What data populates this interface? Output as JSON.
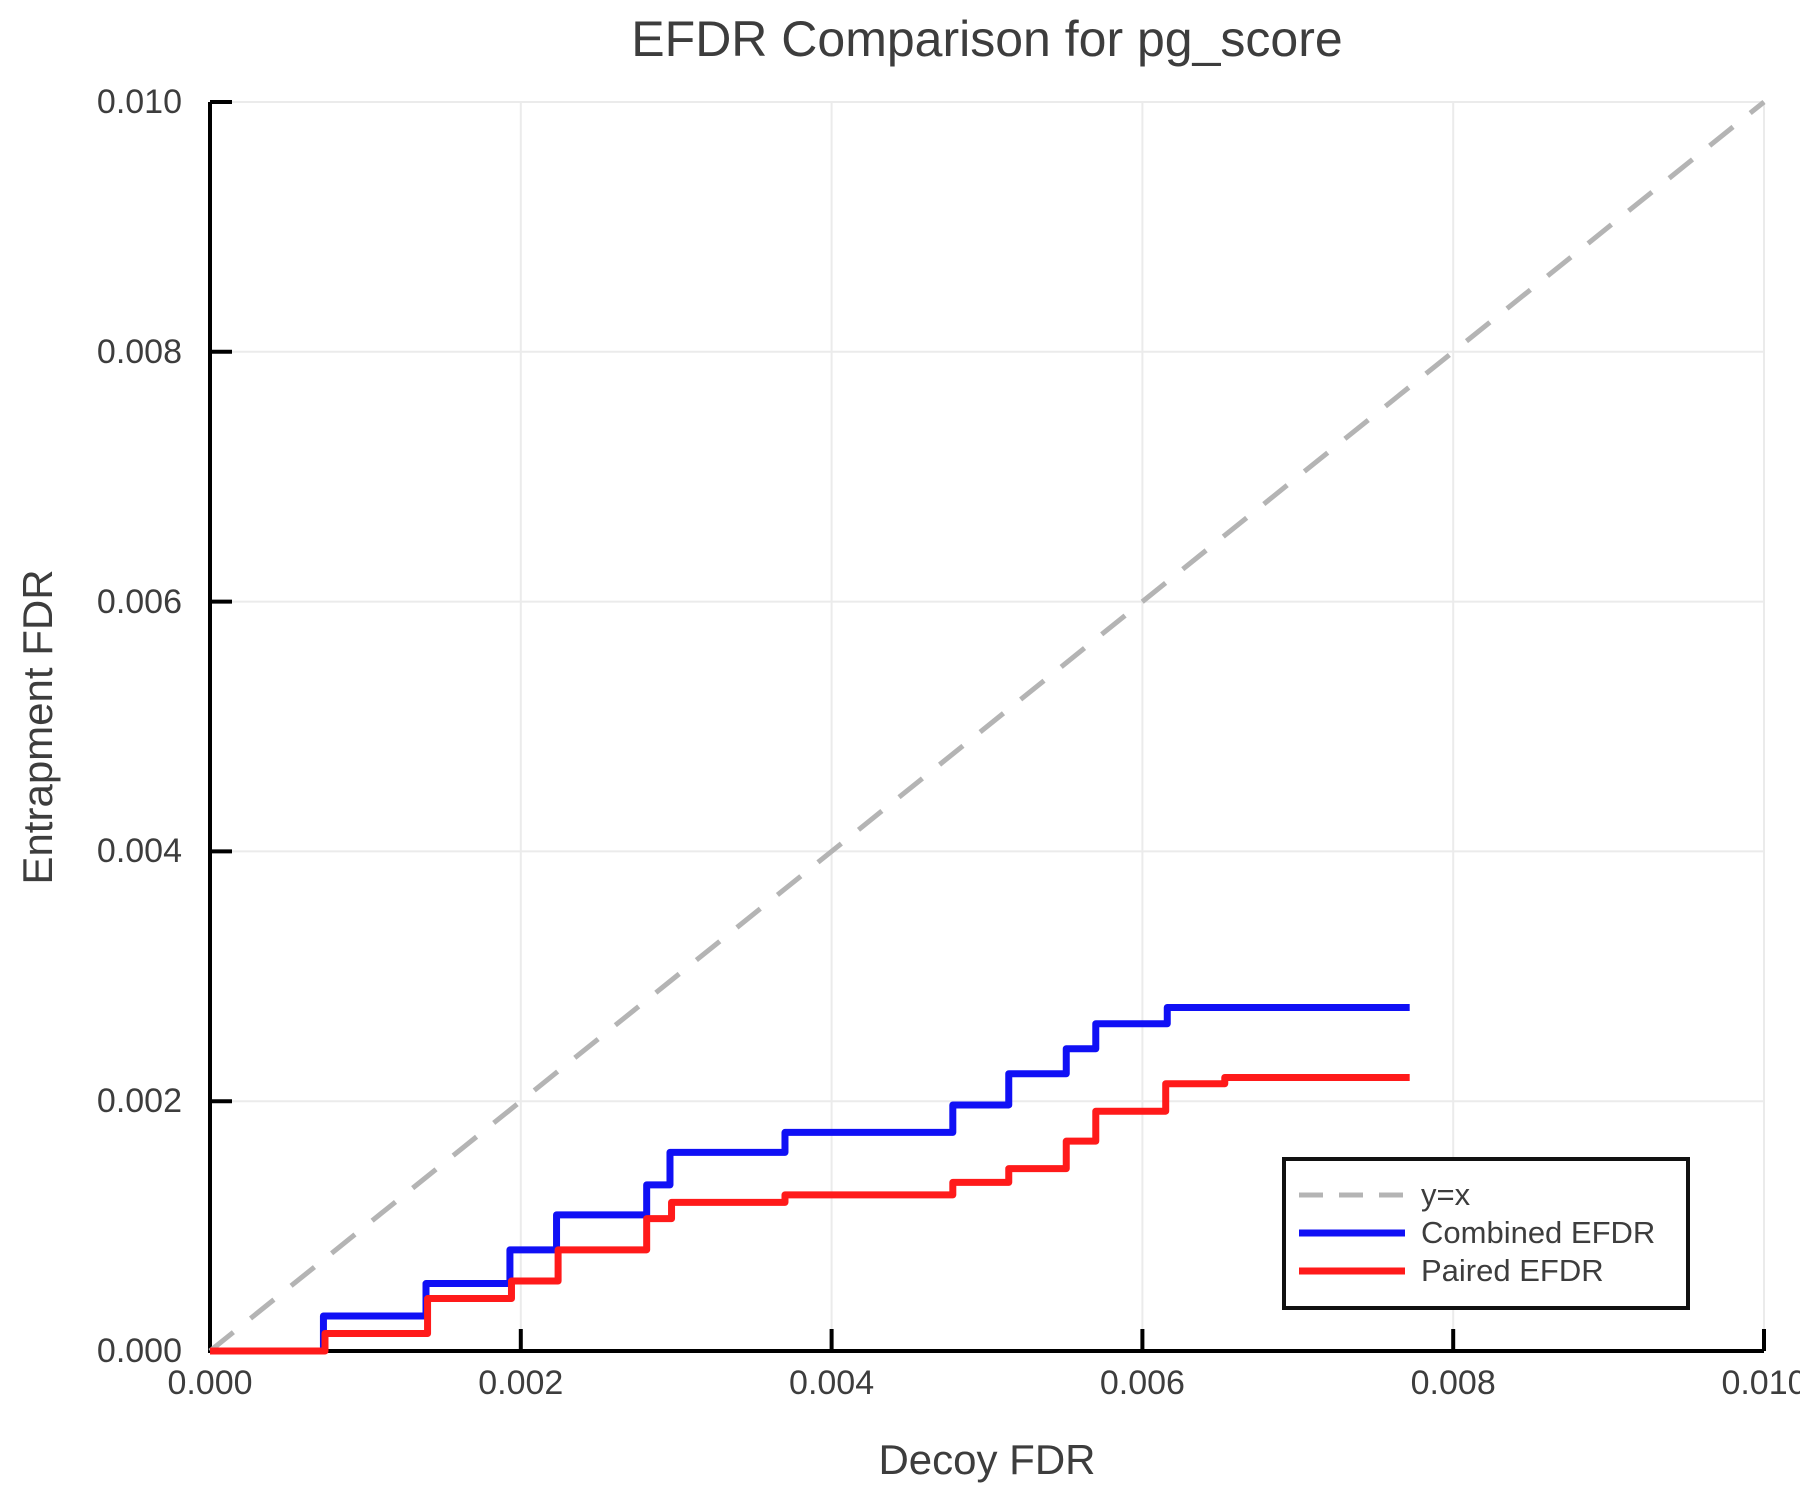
{
  "chart_data": {
    "type": "line",
    "title": "EFDR Comparison for pg_score",
    "xlabel": "Decoy FDR",
    "ylabel": "Entrapment FDR",
    "xlim": [
      0,
      0.01
    ],
    "ylim": [
      0,
      0.01
    ],
    "grid": true,
    "legend_position": "lower right",
    "xticks": {
      "values": [
        0,
        0.002,
        0.004,
        0.006,
        0.008,
        0.01
      ],
      "labels": [
        "0.000",
        "0.002",
        "0.004",
        "0.006",
        "0.008",
        "0.010"
      ]
    },
    "yticks": {
      "values": [
        0,
        0.002,
        0.004,
        0.006,
        0.008,
        0.01
      ],
      "labels": [
        "0.000",
        "0.002",
        "0.004",
        "0.006",
        "0.008",
        "0.010"
      ]
    },
    "colors": {
      "grid": "#ebebeb",
      "axis": "#000000",
      "text": "#3d3d3d",
      "identity": "#b4b4b4",
      "combined": "#1010f5",
      "paired": "#ff1a1a"
    },
    "series": [
      {
        "name": "y=x",
        "style": "dashed",
        "color": "#b4b4b4",
        "points": [
          [
            0,
            0
          ],
          [
            0.01,
            0.01
          ]
        ]
      },
      {
        "name": "Combined EFDR",
        "style": "step",
        "color": "#1010f5",
        "start": [
          0,
          0
        ],
        "steps": [
          [
            0.00073,
            0.00028
          ],
          [
            0.00139,
            0.00054
          ],
          [
            0.00193,
            0.00081
          ],
          [
            0.00223,
            0.00109
          ],
          [
            0.00281,
            0.00133
          ],
          [
            0.00296,
            0.00159
          ],
          [
            0.0037,
            0.00175
          ],
          [
            0.00478,
            0.00197
          ],
          [
            0.00514,
            0.00222
          ],
          [
            0.00551,
            0.00242
          ],
          [
            0.0057,
            0.00262
          ],
          [
            0.00616,
            0.00275
          ]
        ],
        "x_end": 0.00772
      },
      {
        "name": "Paired EFDR",
        "style": "step",
        "color": "#ff1a1a",
        "start": [
          0,
          0
        ],
        "steps": [
          [
            0.00074,
            0.00014
          ],
          [
            0.0014,
            0.00042
          ],
          [
            0.00194,
            0.00056
          ],
          [
            0.00224,
            0.00081
          ],
          [
            0.00281,
            0.00106
          ],
          [
            0.00297,
            0.00119
          ],
          [
            0.0037,
            0.00125
          ],
          [
            0.00478,
            0.00135
          ],
          [
            0.00514,
            0.00146
          ],
          [
            0.00551,
            0.00168
          ],
          [
            0.0057,
            0.00192
          ],
          [
            0.00615,
            0.00214
          ],
          [
            0.00653,
            0.00219
          ]
        ],
        "x_end": 0.00772
      }
    ]
  },
  "legend": {
    "entries": [
      {
        "label": "y=x",
        "style": "dashed",
        "color": "#b4b4b4"
      },
      {
        "label": "Combined EFDR",
        "style": "solid",
        "color": "#1010f5"
      },
      {
        "label": "Paired EFDR",
        "style": "solid",
        "color": "#ff1a1a"
      }
    ]
  }
}
